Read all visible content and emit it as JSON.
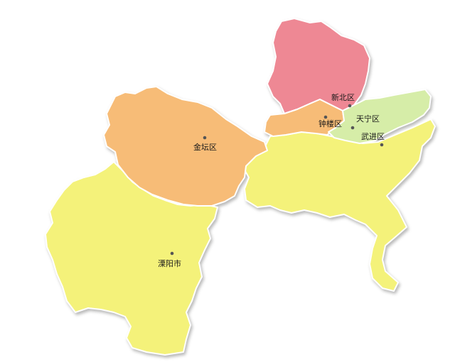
{
  "regions": [
    {
      "id": "xinbei",
      "label": "新北区",
      "color": "#EE8894"
    },
    {
      "id": "tianning",
      "label": "天宁区",
      "color": "#D6EDA8"
    },
    {
      "id": "zhonglou",
      "label": "钟楼区",
      "color": "#F7BC77"
    },
    {
      "id": "wujin",
      "label": "武进区",
      "color": "#F4F27A"
    },
    {
      "id": "jintan",
      "label": "金坛区",
      "color": "#F7BC77"
    },
    {
      "id": "liyang",
      "label": "溧阳市",
      "color": "#F4F27A"
    }
  ],
  "colors": {
    "dot": "#555555",
    "border": "#ffffff",
    "background": "#ffffff"
  }
}
